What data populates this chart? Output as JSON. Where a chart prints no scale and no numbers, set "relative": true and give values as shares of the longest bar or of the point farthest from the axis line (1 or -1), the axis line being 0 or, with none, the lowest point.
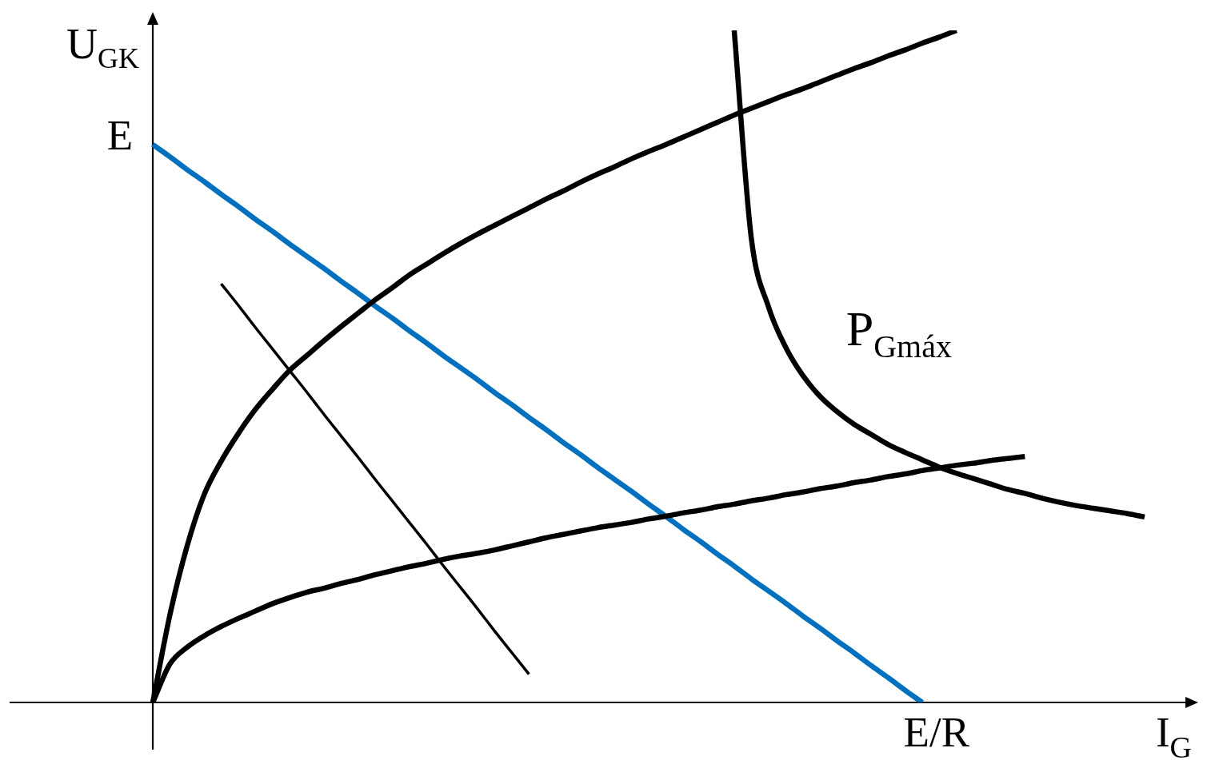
{
  "chart_data": {
    "type": "line",
    "relative": true,
    "xlabel": "I$_{G}$",
    "ylabel": "U$_{GK}$",
    "categories": [
      null,
      null,
      null,
      null,
      null,
      null,
      null,
      null,
      null,
      null,
      null,
      null,
      null,
      null,
      null,
      null,
      null,
      null,
      null,
      null,
      null,
      null,
      null,
      null,
      null,
      null,
      null,
      null,
      null,
      null,
      null,
      null,
      null,
      null,
      null,
      null,
      null,
      null,
      null,
      null,
      null,
      null,
      null,
      null,
      null,
      null,
      null,
      null,
      null,
      null,
      null,
      null,
      null,
      null,
      null,
      null,
      null,
      null,
      null
    ],
    "annotations": [
      "E",
      "E/R"
    ],
    "series": [
      {
        "color": "#000000",
        "values": [
          null,
          null,
          null,
          null,
          0.623,
          0.591,
          0.558,
          0.526,
          0.494,
          0.462,
          0.429,
          0.397,
          0.365,
          0.332,
          0.3,
          0.268,
          0.236,
          0.203,
          0.171,
          0.139,
          0.106,
          0.074,
          0.042,
          null,
          null,
          null,
          null,
          null,
          null,
          null,
          null,
          null,
          null,
          null,
          null,
          null,
          null,
          null,
          null,
          null,
          null,
          null,
          null,
          null,
          null,
          null,
          null,
          null,
          null,
          null,
          null,
          null,
          null,
          null,
          null,
          null,
          null,
          null,
          null
        ]
      },
      {
        "color": "#000000",
        "values": [
          0,
          0.13,
          0.232,
          0.309,
          0.359,
          0.4,
          0.436,
          0.466,
          0.494,
          0.516,
          0.538,
          0.559,
          0.579,
          0.599,
          0.617,
          0.636,
          0.652,
          0.668,
          0.683,
          0.697,
          0.71,
          0.723,
          0.736,
          0.749,
          0.761,
          0.774,
          0.786,
          0.797,
          0.809,
          0.82,
          0.83,
          0.841,
          0.852,
          0.863,
          0.874,
          0.884,
          0.894,
          0.904,
          0.913,
          0.923,
          0.933,
          0.943,
          0.952,
          0.962,
          0.971,
          0.981,
          0.99,
          1,
          null,
          null,
          null,
          null,
          null,
          null,
          null,
          null,
          null,
          null,
          null
        ]
      },
      {
        "color": "#000000",
        "values": [
          0,
          0.057,
          0.082,
          0.099,
          0.113,
          0.125,
          0.136,
          0.147,
          0.156,
          0.164,
          0.17,
          0.177,
          0.183,
          0.19,
          0.196,
          0.202,
          0.207,
          0.213,
          0.218,
          0.222,
          0.227,
          0.233,
          0.239,
          0.245,
          0.25,
          0.255,
          0.26,
          0.264,
          0.268,
          0.273,
          0.277,
          0.282,
          0.286,
          0.291,
          0.295,
          0.3,
          0.304,
          0.309,
          0.313,
          0.318,
          0.322,
          0.327,
          0.331,
          0.336,
          0.34,
          0.345,
          0.349,
          0.353,
          0.356,
          0.36,
          0.363,
          0.366,
          null,
          null,
          null,
          null,
          null,
          null,
          null
        ]
      },
      {
        "name": "P$_{Gmáx}$",
        "color": "#000000",
        "values": [
          null,
          null,
          null,
          null,
          null,
          null,
          null,
          null,
          null,
          null,
          null,
          null,
          null,
          null,
          null,
          null,
          null,
          null,
          null,
          null,
          null,
          null,
          null,
          null,
          null,
          null,
          null,
          null,
          null,
          null,
          null,
          null,
          null,
          null,
          1,
          0.691,
          0.589,
          0.529,
          0.487,
          0.456,
          0.433,
          0.414,
          0.399,
          0.384,
          0.372,
          0.361,
          0.35,
          0.341,
          0.333,
          0.325,
          0.317,
          0.311,
          0.304,
          0.298,
          0.293,
          0.289,
          0.285,
          0.281,
          0.276
        ]
      },
      {
        "color": "#0070c0",
        "values": [
          0.83,
          0.812,
          0.793,
          0.775,
          0.756,
          0.738,
          0.719,
          0.701,
          0.682,
          0.664,
          0.646,
          0.627,
          0.609,
          0.59,
          0.572,
          0.553,
          0.535,
          0.516,
          0.498,
          0.48,
          0.461,
          0.443,
          0.424,
          0.406,
          0.387,
          0.369,
          0.35,
          0.332,
          0.314,
          0.295,
          0.277,
          0.258,
          0.24,
          0.221,
          0.203,
          0.184,
          0.166,
          0.148,
          0.129,
          0.111,
          0.092,
          0.074,
          0.055,
          0.037,
          0.018,
          0,
          null,
          null,
          null,
          null,
          null,
          null,
          null,
          null,
          null,
          null,
          null,
          null,
          null
        ]
      }
    ]
  }
}
